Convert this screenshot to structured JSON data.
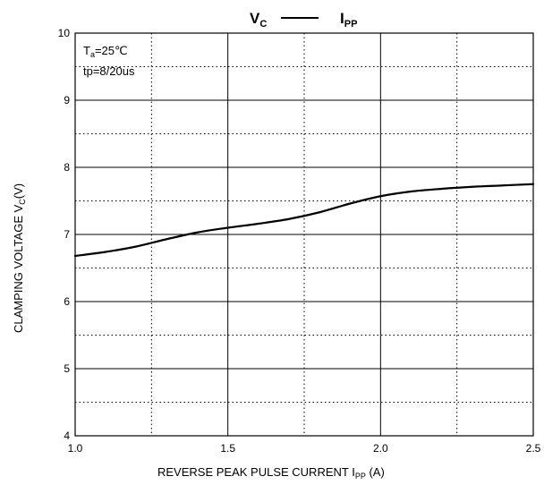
{
  "chart_data": {
    "type": "line",
    "title": {
      "left_main": "V",
      "left_sub": "C",
      "right_main": "I",
      "right_sub": "PP"
    },
    "xlabel": {
      "main": "REVERSE PEAK PULSE CURRENT  I",
      "sub": "PP",
      "suffix": " (A)"
    },
    "ylabel": {
      "main": "CLAMPING VOLTAGE  V",
      "sub": "C",
      "suffix": "(V)"
    },
    "annotations": {
      "temp_main": "T",
      "temp_sub": "a",
      "temp_value": "=25℃",
      "pulse": "tp=8/20us"
    },
    "xlim": [
      1.0,
      2.5
    ],
    "ylim": [
      4,
      10
    ],
    "xticks": [
      1.0,
      1.5,
      2.0,
      2.5
    ],
    "xtick_labels": [
      "1.0",
      "1.5",
      "2.0",
      "2.5"
    ],
    "x_minor_grid": [
      1.25,
      1.75,
      2.25
    ],
    "yticks": [
      4,
      5,
      6,
      7,
      8,
      9,
      10
    ],
    "ytick_labels": [
      "4",
      "5",
      "6",
      "7",
      "8",
      "9",
      "10"
    ],
    "y_minor_grid": [
      4.5,
      5.5,
      6.5,
      7.5,
      8.5,
      9.5
    ],
    "grid": true,
    "series": [
      {
        "x": [
          1.0,
          1.1,
          1.2,
          1.3,
          1.4,
          1.5,
          1.6,
          1.7,
          1.8,
          1.9,
          2.0,
          2.1,
          2.2,
          2.3,
          2.4,
          2.5
        ],
        "y": [
          6.68,
          6.74,
          6.82,
          6.93,
          7.03,
          7.1,
          7.16,
          7.23,
          7.33,
          7.46,
          7.57,
          7.64,
          7.68,
          7.71,
          7.73,
          7.75
        ]
      }
    ],
    "colors": {
      "line": "#000000",
      "grid": "#000000",
      "background": "#ffffff"
    }
  }
}
